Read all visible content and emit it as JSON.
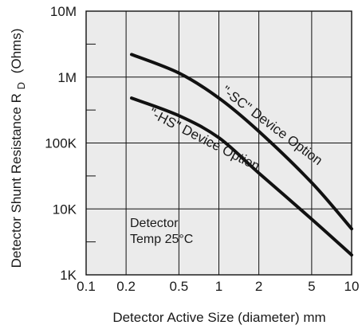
{
  "chart_data": {
    "type": "line",
    "xlabel": "Detector Active Size (diameter) mm",
    "ylabel_main": "Detector Shunt Resistance R",
    "ylabel_sub": "D",
    "ylabel_unit": "(Ohms)",
    "x_scale": "log",
    "y_scale": "log",
    "xlim": [
      0.1,
      10
    ],
    "ylim": [
      1000,
      10000000
    ],
    "x_ticks": [
      {
        "value": 0.1,
        "label": "0.1"
      },
      {
        "value": 0.2,
        "label": "0.2"
      },
      {
        "value": 0.5,
        "label": "0.5"
      },
      {
        "value": 1,
        "label": "1"
      },
      {
        "value": 2,
        "label": "2"
      },
      {
        "value": 5,
        "label": "5"
      },
      {
        "value": 10,
        "label": "10"
      }
    ],
    "y_ticks": [
      {
        "value": 1000,
        "label": "1K"
      },
      {
        "value": 10000,
        "label": "10K"
      },
      {
        "value": 100000,
        "label": "100K"
      },
      {
        "value": 1000000,
        "label": "1M"
      },
      {
        "value": 10000000,
        "label": "10M"
      }
    ],
    "grid": true,
    "series": [
      {
        "name": "\"-SC\" Device Option",
        "x": [
          0.22,
          0.5,
          1,
          2,
          5,
          10
        ],
        "y": [
          2200000,
          1150000,
          480000,
          150000,
          25000,
          5000
        ]
      },
      {
        "name": "\"-HS\" Device Option",
        "x": [
          0.22,
          0.5,
          1,
          2,
          5,
          10
        ],
        "y": [
          480000,
          260000,
          120000,
          35000,
          7000,
          2000
        ]
      }
    ],
    "annotation_lines": [
      "Detector",
      "Temp 25°C"
    ]
  },
  "colors": {
    "plot_background": "#ebebeb",
    "grid": "#111111",
    "curve": "#111111",
    "text": "#1a1a1a"
  }
}
